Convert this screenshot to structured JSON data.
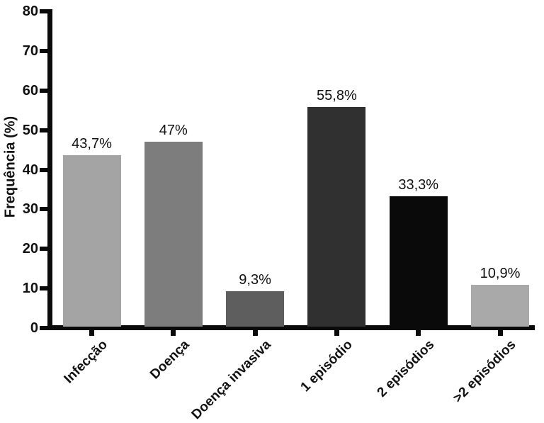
{
  "figure": {
    "background": "#ffffff",
    "text_color": "#111111",
    "axis_color": "#0a0a0a"
  },
  "chart_data": {
    "type": "bar",
    "title": "",
    "xlabel": "",
    "ylabel": "Frequência (%)",
    "categories": [
      "Infecção",
      "Doença",
      "Doença invasiva",
      "1 episódio",
      "2 episódios",
      ">2 episódios"
    ],
    "values": [
      43.7,
      47,
      9.3,
      55.8,
      33.3,
      10.9
    ],
    "value_labels": [
      "43,7%",
      "47%",
      "9,3%",
      "55,8%",
      "33,3%",
      "10,9%"
    ],
    "bar_colors": [
      "#a4a4a4",
      "#7d7d7d",
      "#5e5e5e",
      "#303030",
      "#0a0a0a",
      "#a9a9a9"
    ],
    "ylim": [
      0,
      80
    ],
    "yticks": [
      0,
      10,
      20,
      30,
      40,
      50,
      60,
      70,
      80
    ],
    "grid": false,
    "legend": "none"
  }
}
